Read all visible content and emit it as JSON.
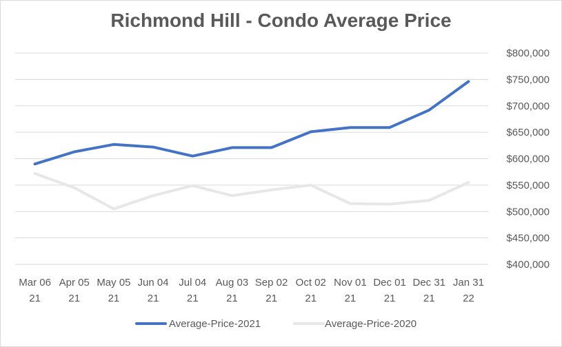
{
  "chart_data": {
    "type": "line",
    "title": "Richmond Hill - Condo Average Price",
    "categories": [
      [
        "Mar 06",
        "21"
      ],
      [
        "Apr 05",
        "21"
      ],
      [
        "May 05",
        "21"
      ],
      [
        "Jun 04",
        "21"
      ],
      [
        "Jul 04",
        "21"
      ],
      [
        "Aug 03",
        "21"
      ],
      [
        "Sep 02",
        "21"
      ],
      [
        "Oct 02",
        "21"
      ],
      [
        "Nov 01",
        "21"
      ],
      [
        "Dec 01",
        "21"
      ],
      [
        "Dec 31",
        "21"
      ],
      [
        "Jan 31",
        "22"
      ]
    ],
    "series": [
      {
        "name": "Average-Price-2021",
        "color": "#4472c4",
        "values": [
          590000,
          613000,
          627000,
          622000,
          605000,
          621000,
          621000,
          651000,
          659000,
          659000,
          692000,
          746000
        ]
      },
      {
        "name": "Average-Price-2020",
        "color": "#e7e7e7",
        "values": [
          572000,
          545000,
          505000,
          530000,
          549000,
          530000,
          541000,
          550000,
          515000,
          514000,
          521000,
          555000
        ]
      }
    ],
    "ylim": [
      400000,
      800000
    ],
    "yticks": [
      400000,
      450000,
      500000,
      550000,
      600000,
      650000,
      700000,
      750000,
      800000
    ],
    "ytick_labels": [
      "$400,000",
      "$450,000",
      "$500,000",
      "$550,000",
      "$600,000",
      "$650,000",
      "$700,000",
      "$750,000",
      "$800,000"
    ],
    "y_axis_side": "right",
    "grid": true,
    "legend": "bottom-center"
  }
}
